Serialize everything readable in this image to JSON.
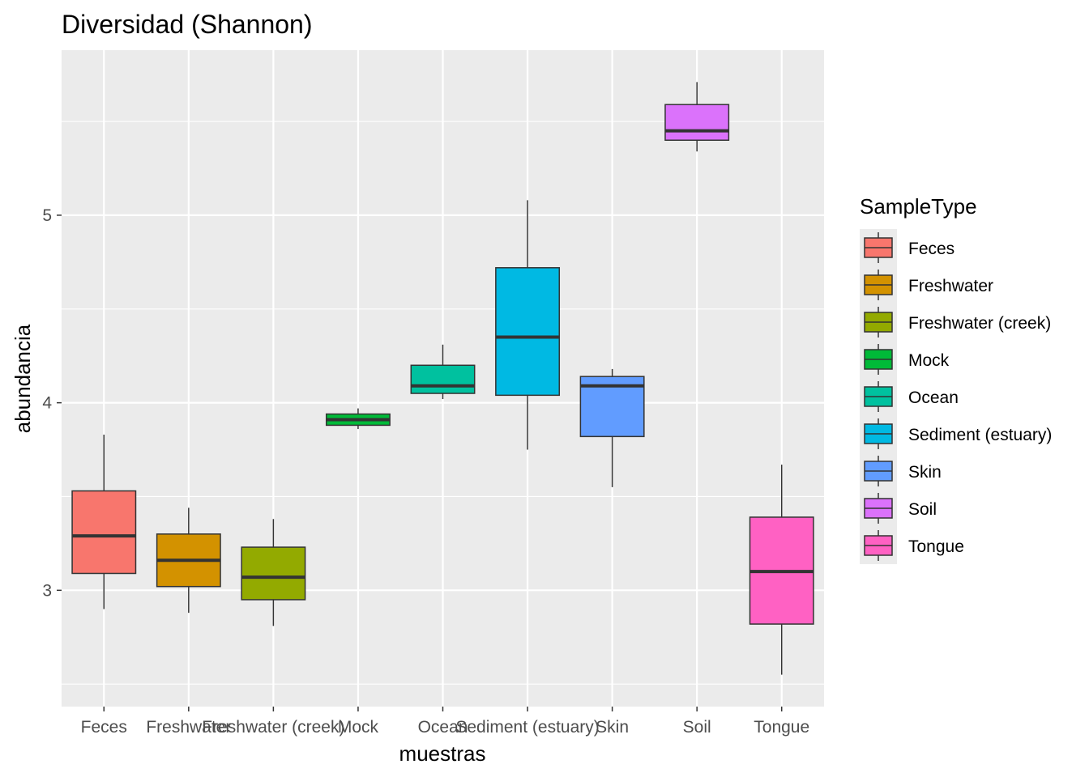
{
  "chart_data": {
    "type": "boxplot",
    "title": "Diversidad (Shannon)",
    "xlabel": "muestras",
    "ylabel": "abundancia",
    "ylim": [
      2.38,
      5.88
    ],
    "yticks": [
      3,
      4,
      5
    ],
    "categories": [
      "Feces",
      "Freshwater",
      "Freshwater (creek)",
      "Mock",
      "Ocean",
      "Sediment (estuary)",
      "Skin",
      "Soil",
      "Tongue"
    ],
    "boxes": [
      {
        "category": "Feces",
        "whisker_low": 2.9,
        "q1": 3.09,
        "median": 3.29,
        "q3": 3.53,
        "whisker_high": 3.83,
        "color": "#F8766D"
      },
      {
        "category": "Freshwater",
        "whisker_low": 2.88,
        "q1": 3.02,
        "median": 3.16,
        "q3": 3.3,
        "whisker_high": 3.44,
        "color": "#D39200"
      },
      {
        "category": "Freshwater (creek)",
        "whisker_low": 2.81,
        "q1": 2.95,
        "median": 3.07,
        "q3": 3.23,
        "whisker_high": 3.38,
        "color": "#93AA00"
      },
      {
        "category": "Mock",
        "whisker_low": 3.86,
        "q1": 3.88,
        "median": 3.91,
        "q3": 3.94,
        "whisker_high": 3.97,
        "color": "#00BA38"
      },
      {
        "category": "Ocean",
        "whisker_low": 4.02,
        "q1": 4.05,
        "median": 4.09,
        "q3": 4.2,
        "whisker_high": 4.31,
        "color": "#00C19F"
      },
      {
        "category": "Sediment (estuary)",
        "whisker_low": 3.75,
        "q1": 4.04,
        "median": 4.35,
        "q3": 4.72,
        "whisker_high": 5.08,
        "color": "#00B9E3"
      },
      {
        "category": "Skin",
        "whisker_low": 3.55,
        "q1": 3.82,
        "median": 4.09,
        "q3": 4.14,
        "whisker_high": 4.18,
        "color": "#619CFF"
      },
      {
        "category": "Soil",
        "whisker_low": 5.34,
        "q1": 5.4,
        "median": 5.45,
        "q3": 5.59,
        "whisker_high": 5.71,
        "color": "#DB72FB"
      },
      {
        "category": "Tongue",
        "whisker_low": 2.55,
        "q1": 2.82,
        "median": 3.1,
        "q3": 3.39,
        "whisker_high": 3.67,
        "color": "#FF61C3"
      }
    ],
    "legend": {
      "title": "SampleType",
      "position": "right",
      "items": [
        {
          "label": "Feces",
          "color": "#F8766D"
        },
        {
          "label": "Freshwater",
          "color": "#D39200"
        },
        {
          "label": "Freshwater (creek)",
          "color": "#93AA00"
        },
        {
          "label": "Mock",
          "color": "#00BA38"
        },
        {
          "label": "Ocean",
          "color": "#00C19F"
        },
        {
          "label": "Sediment (estuary)",
          "color": "#00B9E3"
        },
        {
          "label": "Skin",
          "color": "#619CFF"
        },
        {
          "label": "Soil",
          "color": "#DB72FB"
        },
        {
          "label": "Tongue",
          "color": "#FF61C3"
        }
      ]
    },
    "grid": true,
    "panel_background": "#EBEBEB",
    "grid_color": "#FFFFFF",
    "box_outline_color": "#333333"
  }
}
